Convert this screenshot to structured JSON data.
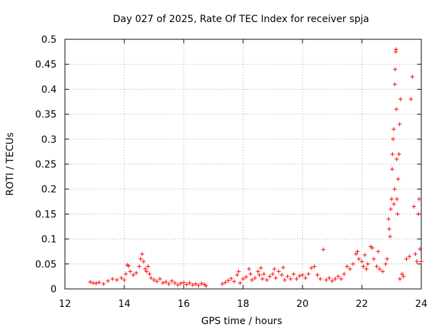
{
  "chart_data": {
    "type": "scatter",
    "title": "Day 027 of 2025, Rate Of TEC Index for receiver spja",
    "xlabel": "GPS time / hours",
    "ylabel": "ROTI / TECUs",
    "xlim": [
      12,
      24
    ],
    "ylim": [
      0,
      0.5
    ],
    "xticks": [
      12,
      14,
      16,
      18,
      20,
      22,
      24
    ],
    "yticks": [
      0,
      0.05,
      0.1,
      0.15,
      0.2,
      0.25,
      0.3,
      0.35,
      0.4,
      0.45,
      0.5
    ],
    "xtick_labels": [
      "12",
      "14",
      "16",
      "18",
      "20",
      "22",
      "24"
    ],
    "ytick_labels": [
      "0",
      "0.05",
      "0.1",
      "0.15",
      "0.2",
      "0.25",
      "0.3",
      "0.35",
      "0.4",
      "0.45",
      "0.5"
    ],
    "grid": true,
    "marker": "+",
    "color": "#ff0000",
    "series": [
      {
        "name": "ROTI",
        "points": [
          [
            12.85,
            0.014
          ],
          [
            12.95,
            0.012
          ],
          [
            13.05,
            0.011
          ],
          [
            13.15,
            0.013
          ],
          [
            13.3,
            0.01
          ],
          [
            13.45,
            0.016
          ],
          [
            13.6,
            0.02
          ],
          [
            13.75,
            0.018
          ],
          [
            13.9,
            0.022
          ],
          [
            14.0,
            0.018
          ],
          [
            14.05,
            0.03
          ],
          [
            14.1,
            0.048
          ],
          [
            14.15,
            0.046
          ],
          [
            14.2,
            0.035
          ],
          [
            14.3,
            0.028
          ],
          [
            14.4,
            0.032
          ],
          [
            14.5,
            0.045
          ],
          [
            14.55,
            0.06
          ],
          [
            14.6,
            0.07
          ],
          [
            14.65,
            0.055
          ],
          [
            14.7,
            0.04
          ],
          [
            14.75,
            0.035
          ],
          [
            14.8,
            0.045
          ],
          [
            14.85,
            0.03
          ],
          [
            14.9,
            0.022
          ],
          [
            15.0,
            0.018
          ],
          [
            15.1,
            0.015
          ],
          [
            15.2,
            0.02
          ],
          [
            15.3,
            0.012
          ],
          [
            15.4,
            0.014
          ],
          [
            15.5,
            0.01
          ],
          [
            15.6,
            0.016
          ],
          [
            15.7,
            0.012
          ],
          [
            15.8,
            0.008
          ],
          [
            15.9,
            0.011
          ],
          [
            16.0,
            0.013
          ],
          [
            16.1,
            0.009
          ],
          [
            16.2,
            0.012
          ],
          [
            16.3,
            0.008
          ],
          [
            16.4,
            0.01
          ],
          [
            16.5,
            0.007
          ],
          [
            16.6,
            0.011
          ],
          [
            16.7,
            0.009
          ],
          [
            16.75,
            0.006
          ],
          [
            17.3,
            0.01
          ],
          [
            17.4,
            0.013
          ],
          [
            17.5,
            0.017
          ],
          [
            17.6,
            0.021
          ],
          [
            17.7,
            0.015
          ],
          [
            17.8,
            0.028
          ],
          [
            17.85,
            0.035
          ],
          [
            17.9,
            0.012
          ],
          [
            18.0,
            0.02
          ],
          [
            18.1,
            0.024
          ],
          [
            18.2,
            0.04
          ],
          [
            18.25,
            0.03
          ],
          [
            18.3,
            0.018
          ],
          [
            18.4,
            0.022
          ],
          [
            18.5,
            0.035
          ],
          [
            18.55,
            0.028
          ],
          [
            18.6,
            0.042
          ],
          [
            18.65,
            0.02
          ],
          [
            18.7,
            0.03
          ],
          [
            18.8,
            0.018
          ],
          [
            18.9,
            0.025
          ],
          [
            19.0,
            0.03
          ],
          [
            19.05,
            0.04
          ],
          [
            19.1,
            0.022
          ],
          [
            19.2,
            0.035
          ],
          [
            19.3,
            0.028
          ],
          [
            19.35,
            0.043
          ],
          [
            19.4,
            0.018
          ],
          [
            19.5,
            0.025
          ],
          [
            19.6,
            0.02
          ],
          [
            19.7,
            0.03
          ],
          [
            19.8,
            0.02
          ],
          [
            19.9,
            0.026
          ],
          [
            20.0,
            0.028
          ],
          [
            20.1,
            0.022
          ],
          [
            20.2,
            0.03
          ],
          [
            20.3,
            0.042
          ],
          [
            20.4,
            0.045
          ],
          [
            20.5,
            0.028
          ],
          [
            20.6,
            0.02
          ],
          [
            20.7,
            0.079
          ],
          [
            20.8,
            0.018
          ],
          [
            20.9,
            0.022
          ],
          [
            21.0,
            0.016
          ],
          [
            21.1,
            0.02
          ],
          [
            21.2,
            0.025
          ],
          [
            21.3,
            0.02
          ],
          [
            21.4,
            0.03
          ],
          [
            21.5,
            0.045
          ],
          [
            21.6,
            0.04
          ],
          [
            21.7,
            0.05
          ],
          [
            21.8,
            0.07
          ],
          [
            21.85,
            0.075
          ],
          [
            21.9,
            0.06
          ],
          [
            22.0,
            0.055
          ],
          [
            22.05,
            0.045
          ],
          [
            22.1,
            0.068
          ],
          [
            22.15,
            0.04
          ],
          [
            22.2,
            0.05
          ],
          [
            22.3,
            0.085
          ],
          [
            22.35,
            0.082
          ],
          [
            22.4,
            0.06
          ],
          [
            22.5,
            0.045
          ],
          [
            22.55,
            0.075
          ],
          [
            22.6,
            0.04
          ],
          [
            22.7,
            0.035
          ],
          [
            22.8,
            0.05
          ],
          [
            22.85,
            0.06
          ],
          [
            22.9,
            0.14
          ],
          [
            22.92,
            0.12
          ],
          [
            22.95,
            0.105
          ],
          [
            22.97,
            0.16
          ],
          [
            23.0,
            0.18
          ],
          [
            23.02,
            0.24
          ],
          [
            23.03,
            0.27
          ],
          [
            23.05,
            0.3
          ],
          [
            23.07,
            0.32
          ],
          [
            23.08,
            0.17
          ],
          [
            23.1,
            0.2
          ],
          [
            23.11,
            0.41
          ],
          [
            23.12,
            0.44
          ],
          [
            23.14,
            0.475
          ],
          [
            23.15,
            0.48
          ],
          [
            23.16,
            0.36
          ],
          [
            23.17,
            0.26
          ],
          [
            23.18,
            0.18
          ],
          [
            23.2,
            0.15
          ],
          [
            23.22,
            0.22
          ],
          [
            23.25,
            0.27
          ],
          [
            23.27,
            0.33
          ],
          [
            23.3,
            0.38
          ],
          [
            23.28,
            0.02
          ],
          [
            23.35,
            0.03
          ],
          [
            23.4,
            0.025
          ],
          [
            23.5,
            0.06
          ],
          [
            23.6,
            0.065
          ],
          [
            23.65,
            0.38
          ],
          [
            23.7,
            0.425
          ],
          [
            23.75,
            0.165
          ],
          [
            23.8,
            0.07
          ],
          [
            23.85,
            0.055
          ],
          [
            23.9,
            0.15
          ],
          [
            23.93,
            0.18
          ],
          [
            23.96,
            0.08
          ],
          [
            24.0,
            0.055
          ]
        ]
      }
    ]
  }
}
